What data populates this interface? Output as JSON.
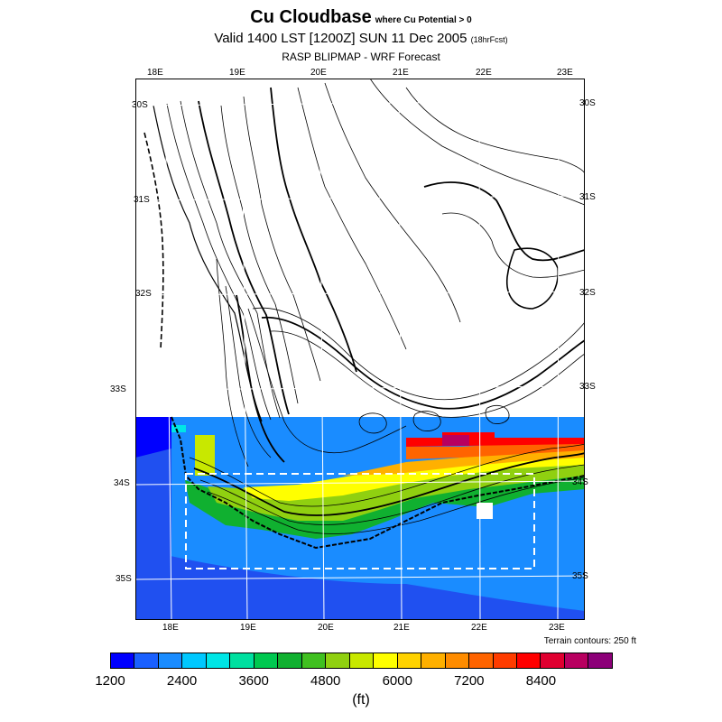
{
  "title": {
    "main": "Cu Cloudbase",
    "qualifier": "where Cu Potential > 0",
    "valid": "Valid 1400 LST [1200Z] SUN 11 Dec 2005",
    "forecast_hours": "(18hrFcst)",
    "model": "RASP BLIPMAP - WRF Forecast"
  },
  "map": {
    "lon_top": [
      "18E",
      "19E",
      "20E",
      "21E",
      "22E",
      "23E"
    ],
    "lon_bottom": [
      "18E",
      "19E",
      "20E",
      "21E",
      "22E",
      "23E"
    ],
    "lat_left": [
      "30S",
      "31S",
      "32S",
      "33S",
      "34S",
      "35S"
    ],
    "lat_right": [
      "30S",
      "31S",
      "32S",
      "33S",
      "34S",
      "35S"
    ],
    "terrain_note": "Terrain contours: 250 ft",
    "colors": {
      "ocean_deep": "#2050f0",
      "ocean": "#1a8cff",
      "contour": "#000000",
      "grid": "#ffffff"
    }
  },
  "colorbar": {
    "units": "(ft)",
    "tick_labels": [
      "1200",
      "2400",
      "3600",
      "4800",
      "6000",
      "7200",
      "8400"
    ],
    "colors": [
      "#0000ff",
      "#1a60ff",
      "#1a8cff",
      "#00c8ff",
      "#00e6e6",
      "#00e0a0",
      "#00c850",
      "#10b030",
      "#40c020",
      "#90d010",
      "#c8e800",
      "#ffff00",
      "#ffd200",
      "#ffb000",
      "#ff8c00",
      "#ff6400",
      "#ff3c00",
      "#ff0000",
      "#e00030",
      "#b80060",
      "#8c0078"
    ]
  }
}
